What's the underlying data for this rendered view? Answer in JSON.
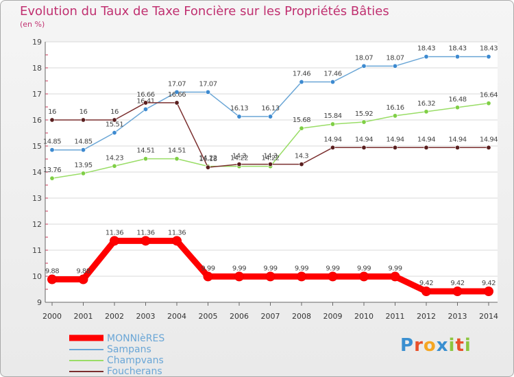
{
  "title": "Evolution du Taux de Taxe Foncière sur les Propriétés Bâties",
  "subtitle": "(en %)",
  "logo": "Proxiti",
  "chart_data": {
    "type": "line",
    "title": "Evolution du Taux de Taxe Foncière sur les Propriétés Bâties",
    "ylabel": "(en %)",
    "xlabel": "",
    "ylim": [
      9,
      19
    ],
    "yticks": [
      9,
      10,
      11,
      12,
      13,
      14,
      15,
      16,
      17,
      18,
      19
    ],
    "categories": [
      "2000",
      "2001",
      "2002",
      "2003",
      "2004",
      "2005",
      "2006",
      "2007",
      "2008",
      "2009",
      "2010",
      "2011",
      "2012",
      "2013",
      "2014"
    ],
    "series": [
      {
        "name": "MONNIèRES",
        "color": "#ff0000",
        "values": [
          9.88,
          9.88,
          11.36,
          11.36,
          11.36,
          9.99,
          9.99,
          9.99,
          9.99,
          9.99,
          9.99,
          9.99,
          9.42,
          9.42,
          9.42
        ]
      },
      {
        "name": "Sampans",
        "color": "#6aa6d6",
        "values": [
          14.85,
          14.85,
          15.51,
          16.41,
          17.07,
          17.07,
          16.13,
          16.13,
          17.46,
          17.46,
          18.07,
          18.07,
          18.43,
          18.43,
          18.43
        ]
      },
      {
        "name": "Champvans",
        "color": "#99dd66",
        "values": [
          13.76,
          13.95,
          14.23,
          14.51,
          14.51,
          14.22,
          14.22,
          14.22,
          15.68,
          15.84,
          15.92,
          16.16,
          16.32,
          16.48,
          16.64
        ]
      },
      {
        "name": "Foucherans",
        "color": "#7a2e2e",
        "values": [
          16,
          16,
          16,
          16.66,
          16.66,
          14.18,
          14.3,
          14.3,
          14.3,
          14.94,
          14.94,
          14.94,
          14.94,
          14.94,
          14.94
        ]
      }
    ],
    "legend_position": "bottom-left"
  }
}
